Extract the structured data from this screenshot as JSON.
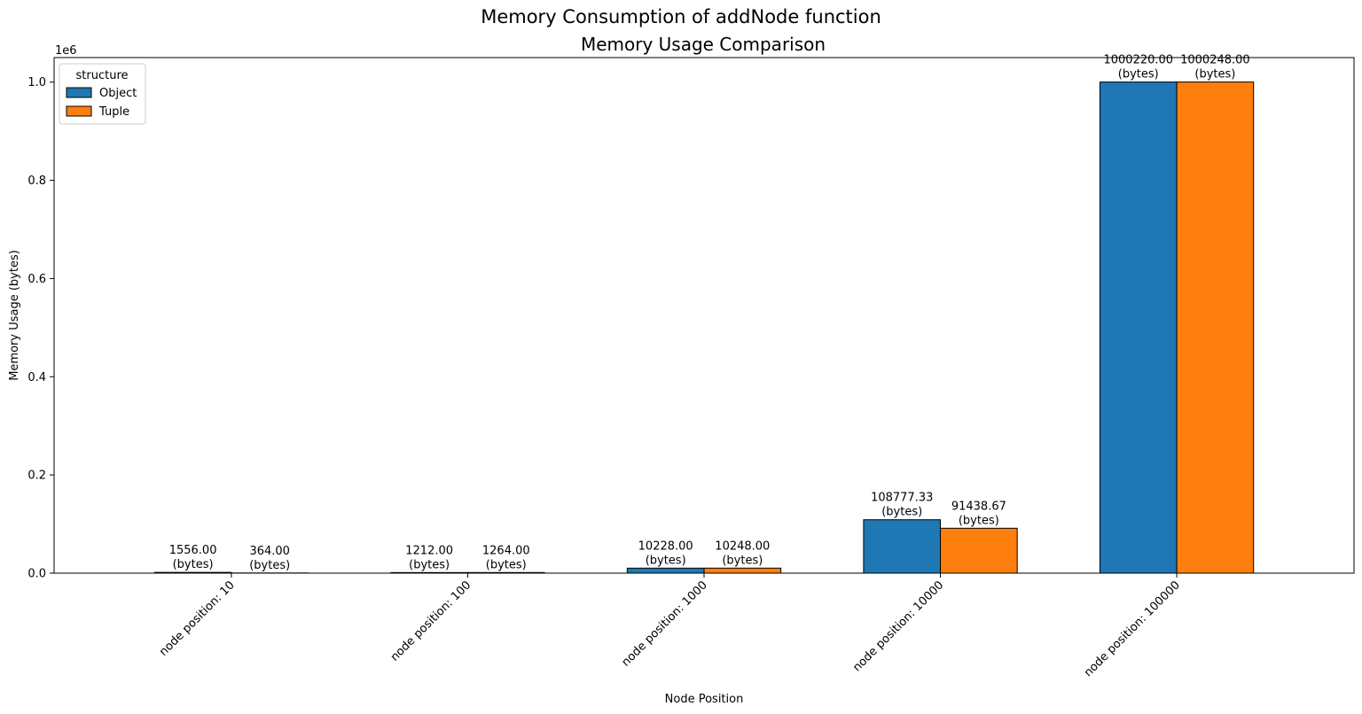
{
  "chart_data": {
    "type": "bar",
    "suptitle": "Memory Consumption of addNode function",
    "title": "Memory Usage Comparison",
    "xlabel": "Node Position",
    "ylabel": "Memory Usage (bytes)",
    "y_offset_label": "1e6",
    "categories": [
      "node position: 10",
      "node position: 100",
      "node position: 1000",
      "node position: 10000",
      "node position: 100000"
    ],
    "series": [
      {
        "name": "Object",
        "color": "#1f77b4",
        "values": [
          1556.0,
          1212.0,
          10228.0,
          108777.33,
          1000220.0
        ],
        "labels": [
          "1556.00",
          "1212.00",
          "10228.00",
          "108777.33",
          "1000220.00"
        ]
      },
      {
        "name": "Tuple",
        "color": "#ff7f0e",
        "values": [
          364.0,
          1264.0,
          10248.0,
          91438.67,
          1000248.0
        ],
        "labels": [
          "364.00",
          "1264.00",
          "10248.00",
          "91438.67",
          "1000248.00"
        ]
      }
    ],
    "value_unit_label": "(bytes)",
    "ylim": [
      0,
      1050000
    ],
    "yticks": [
      0,
      200000,
      400000,
      600000,
      800000,
      1000000
    ],
    "ytick_labels": [
      "0.0",
      "0.2",
      "0.4",
      "0.6",
      "0.8",
      "1.0"
    ],
    "legend": {
      "title": "structure",
      "placement": "top-left"
    },
    "grid": false
  }
}
